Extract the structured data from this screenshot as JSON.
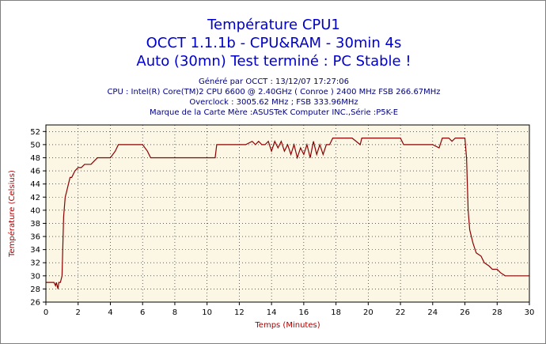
{
  "header": {
    "title_line1": "Température CPU1",
    "title_line2": "OCCT 1.1.1b - CPU&RAM - 30min 4s",
    "title_line3": "Auto (30mn) Test terminé : PC Stable !",
    "info_line1": "Généré par OCCT : 13/12/07 17:27:06",
    "info_line2": "CPU : Intel(R) Core(TM)2 CPU 6600 @ 2.40GHz ( Conroe ) 2400 MHz FSB 266.67MHz",
    "info_line3": "Overclock : 3005.62 MHz ; FSB 333.96MHz",
    "info_line4": "Marque de la Carte Mère :ASUSTeK Computer INC.,Série :P5K-E"
  },
  "colors": {
    "title": "#0000cc",
    "info": "#000080",
    "line": "#8b0000",
    "axis_label": "#aa0000",
    "plot_bg": "#fcf7e5",
    "grid": "#000000"
  },
  "chart_data": {
    "type": "line",
    "xlabel": "Temps (Minutes)",
    "ylabel": "Température (Celsius)",
    "xlim": [
      0,
      30
    ],
    "ylim": [
      26,
      53
    ],
    "x_ticks": [
      0,
      2,
      4,
      6,
      8,
      10,
      12,
      14,
      16,
      18,
      20,
      22,
      24,
      26,
      28,
      30
    ],
    "y_ticks": [
      26,
      28,
      30,
      32,
      34,
      36,
      38,
      40,
      42,
      44,
      46,
      48,
      50,
      52
    ],
    "grid": true,
    "grid_style": "dashed",
    "series": [
      {
        "x": [
          0,
          0.5,
          0.6,
          0.65,
          0.75,
          0.8,
          0.9,
          1.0,
          1.1,
          1.2,
          1.3,
          1.4,
          1.5,
          1.6,
          1.8,
          2.0,
          2.2,
          2.4,
          2.6,
          2.8,
          3.0,
          3.2,
          3.4,
          3.6,
          4.0,
          4.3,
          4.5,
          5.0,
          5.5,
          6.0,
          6.3,
          6.5,
          6.7,
          7.0,
          8.0,
          9.0,
          10.0,
          10.5,
          10.6,
          11.0,
          12.0,
          12.2,
          12.4,
          12.8,
          13.0,
          13.2,
          13.4,
          13.6,
          13.8,
          14.0,
          14.2,
          14.4,
          14.6,
          14.8,
          15.0,
          15.2,
          15.4,
          15.6,
          15.8,
          16.0,
          16.2,
          16.4,
          16.6,
          16.8,
          17.0,
          17.2,
          17.4,
          17.6,
          17.8,
          18.0,
          18.5,
          19.0,
          19.5,
          19.6,
          20.0,
          21.0,
          22.0,
          22.2,
          22.4,
          23.0,
          24.0,
          24.4,
          24.6,
          25.0,
          25.2,
          25.4,
          25.6,
          25.8,
          26.0,
          26.1,
          26.2,
          26.3,
          26.5,
          26.7,
          27.0,
          27.2,
          27.5,
          27.7,
          28.0,
          28.2,
          28.5,
          30.0
        ],
        "y": [
          29,
          29,
          28.5,
          29,
          28,
          29,
          29,
          30,
          39,
          42,
          43,
          44,
          45,
          45,
          46,
          46.5,
          46.5,
          47,
          47,
          47,
          47.5,
          48,
          48,
          48,
          48,
          49,
          50,
          50,
          50,
          50,
          49,
          48,
          48,
          48,
          48,
          48,
          48,
          48,
          50,
          50,
          50,
          50,
          50,
          50.5,
          50,
          50.5,
          50,
          50,
          50.5,
          49,
          50.5,
          49.5,
          50.5,
          49,
          50,
          48.5,
          50,
          48,
          49.5,
          48.5,
          50,
          48,
          50.5,
          48.5,
          50,
          48.5,
          50,
          50,
          51,
          51,
          51,
          51,
          50,
          51,
          51,
          51,
          51,
          50,
          50,
          50,
          50,
          49.5,
          51,
          51,
          50.5,
          51,
          51,
          51,
          51,
          48,
          40,
          37,
          35,
          33.5,
          33,
          32,
          31.5,
          31,
          31,
          30.5,
          30,
          30
        ]
      }
    ]
  }
}
